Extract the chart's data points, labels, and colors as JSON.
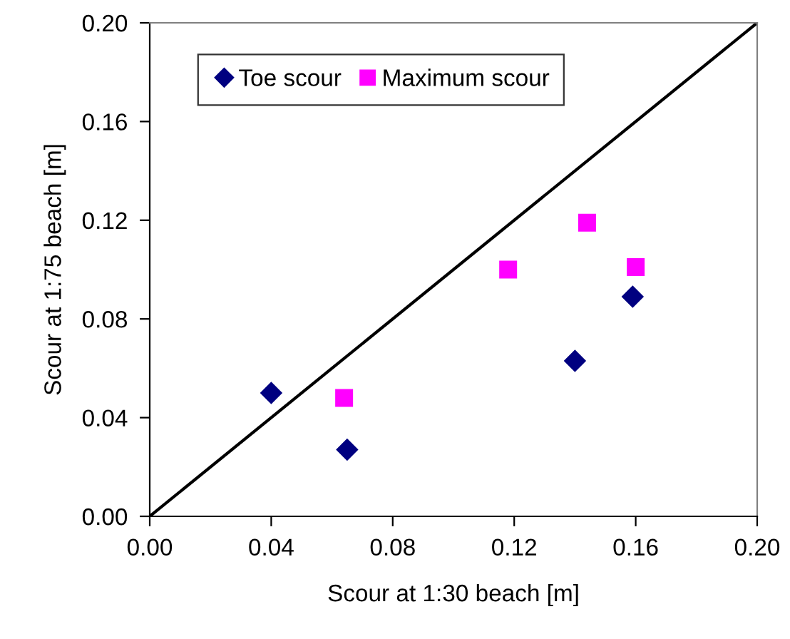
{
  "chart_data": {
    "type": "scatter",
    "xlabel": "Scour at 1:30 beach [m]",
    "ylabel": "Scour at 1:75 beach [m]",
    "series": [
      {
        "name": "Toe scour",
        "color": "#000080",
        "marker": "diamond",
        "x": [
          0.04,
          0.065,
          0.14,
          0.159
        ],
        "values": [
          0.05,
          0.027,
          0.063,
          0.089
        ]
      },
      {
        "name": "Maximum scour",
        "color": "#ff00ff",
        "marker": "square",
        "x": [
          0.064,
          0.118,
          0.144,
          0.16
        ],
        "values": [
          0.048,
          0.1,
          0.119,
          0.101
        ]
      },
      {
        "type": "line",
        "color": "#000000",
        "marker": "none",
        "x": [
          0.0,
          0.2
        ],
        "values": [
          0.0,
          0.2
        ]
      }
    ],
    "xlim": [
      0.0,
      0.2
    ],
    "ylim": [
      0.0,
      0.2
    ],
    "xticks": [
      {
        "value": 0.0,
        "label": "0.00"
      },
      {
        "value": 0.04,
        "label": "0.04"
      },
      {
        "value": 0.08,
        "label": "0.08"
      },
      {
        "value": 0.12,
        "label": "0.12"
      },
      {
        "value": 0.16,
        "label": "0.16"
      },
      {
        "value": 0.2,
        "label": "0.20"
      }
    ],
    "yticks": [
      {
        "value": 0.0,
        "label": "0.00"
      },
      {
        "value": 0.04,
        "label": "0.04"
      },
      {
        "value": 0.08,
        "label": "0.08"
      },
      {
        "value": 0.12,
        "label": "0.12"
      },
      {
        "value": 0.16,
        "label": "0.16"
      },
      {
        "value": 0.2,
        "label": "0.20"
      }
    ],
    "grid": false,
    "legend": "top left"
  }
}
